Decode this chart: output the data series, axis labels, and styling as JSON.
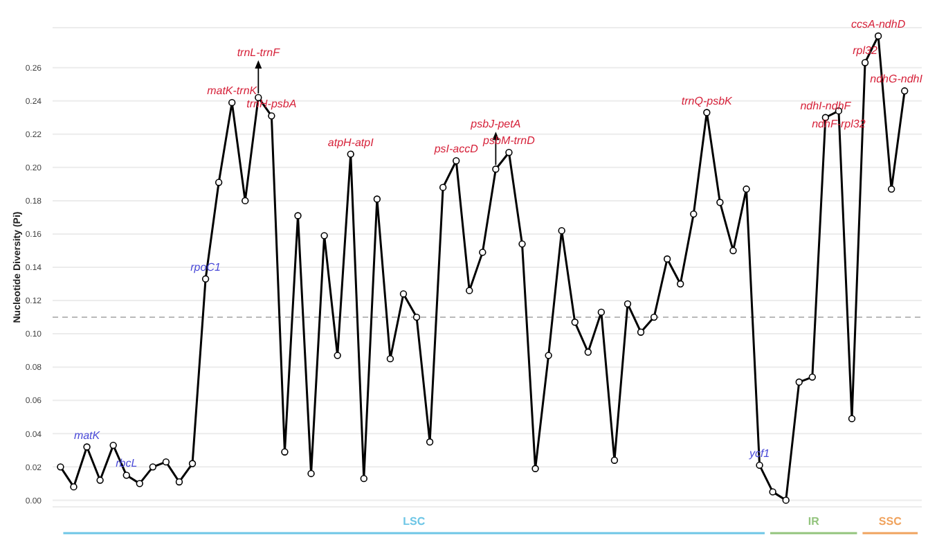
{
  "chart_data": {
    "type": "line",
    "ylabel": "Nucleotide Diversity (Pi)",
    "categories": [
      null,
      null,
      null,
      null,
      null,
      null,
      null,
      null,
      null,
      null,
      null,
      null,
      null,
      null,
      null,
      null,
      null,
      null,
      null,
      null,
      null,
      null,
      null,
      null,
      null,
      null,
      null,
      null,
      null,
      null,
      null,
      null,
      null,
      null,
      null,
      null,
      null,
      null,
      null,
      null,
      null,
      null,
      null,
      null,
      null,
      null,
      null,
      null,
      null,
      null,
      null,
      null,
      null,
      null,
      null,
      null,
      null,
      null,
      null,
      null,
      null,
      null,
      null,
      null,
      null
    ],
    "series": [
      {
        "color": "#000000",
        "values": [
          0.02,
          0.008,
          0.032,
          0.012,
          0.033,
          0.015,
          0.01,
          0.02,
          0.023,
          0.011,
          0.022,
          0.133,
          0.191,
          0.239,
          0.18,
          0.242,
          0.231,
          0.029,
          0.171,
          0.016,
          0.159,
          0.087,
          0.208,
          0.013,
          0.181,
          0.085,
          0.124,
          0.11,
          0.035,
          0.188,
          0.204,
          0.126,
          0.149,
          0.199,
          0.209,
          0.154,
          0.019,
          0.087,
          0.162,
          0.107,
          0.089,
          0.113,
          0.024,
          0.118,
          0.101,
          0.11,
          0.145,
          0.13,
          0.172,
          0.233,
          0.179,
          0.15,
          0.187,
          0.021,
          0.005,
          0.0,
          0.071,
          0.074,
          0.23,
          0.234,
          0.049,
          0.263,
          0.279,
          0.187,
          0.246
        ]
      }
    ],
    "ylim": [
      -0.004,
      0.284
    ],
    "yticks": [
      {
        "value": 0,
        "label": "0.00"
      },
      {
        "value": 0.02,
        "label": "0.02"
      },
      {
        "value": 0.04,
        "label": "0.04"
      },
      {
        "value": 0.06,
        "label": "0.06"
      },
      {
        "value": 0.08,
        "label": "0.08"
      },
      {
        "value": 0.1,
        "label": "0.10"
      },
      {
        "value": 0.12,
        "label": "0.12"
      },
      {
        "value": 0.14,
        "label": "0.14"
      },
      {
        "value": 0.16,
        "label": "0.16"
      },
      {
        "value": 0.18,
        "label": "0.18"
      },
      {
        "value": 0.2,
        "label": "0.20"
      },
      {
        "value": 0.22,
        "label": "0.22"
      },
      {
        "value": 0.24,
        "label": "0.24"
      },
      {
        "value": 0.26,
        "label": "0.26"
      }
    ],
    "grid": "y",
    "marker": "circle",
    "line_style": "solid",
    "tick_labels": "y",
    "ref_lines": [
      {
        "axis": "y",
        "value": 0.11,
        "color": "#b0b0b0",
        "line_style": "dashed"
      }
    ],
    "annotations": [
      "LSC",
      "IR",
      "SSC",
      {
        "text": "matK",
        "y": 0.032
      },
      {
        "text": "rbcL",
        "y": 0.015
      },
      {
        "text": "rpoC1",
        "y": 0.133
      },
      {
        "text": "matK-trnK",
        "y": 0.239
      },
      {
        "text": "trnL-trnF",
        "y": 0.242
      },
      {
        "text": "trnH-psbA",
        "y": 0.231
      },
      {
        "text": "atpH-atpI",
        "y": 0.208
      },
      {
        "text": "psI-accD",
        "y": 0.204
      },
      {
        "text": "psbJ-petA",
        "y": 0.199
      },
      {
        "text": "psbM-trnD",
        "y": 0.209
      },
      {
        "text": "trnQ-psbK",
        "y": 0.233
      },
      {
        "text": "ycf1",
        "y": 0.021
      },
      {
        "text": "ndhI-ndhF",
        "y": 0.23
      },
      {
        "text": "ndhF-rpl32",
        "y": 0.234
      },
      {
        "text": "rpl32",
        "y": 0.263
      },
      {
        "text": "ccsA-ndhD",
        "y": 0.279
      },
      {
        "text": "ndhG-ndhI",
        "y": 0.246
      }
    ]
  }
}
